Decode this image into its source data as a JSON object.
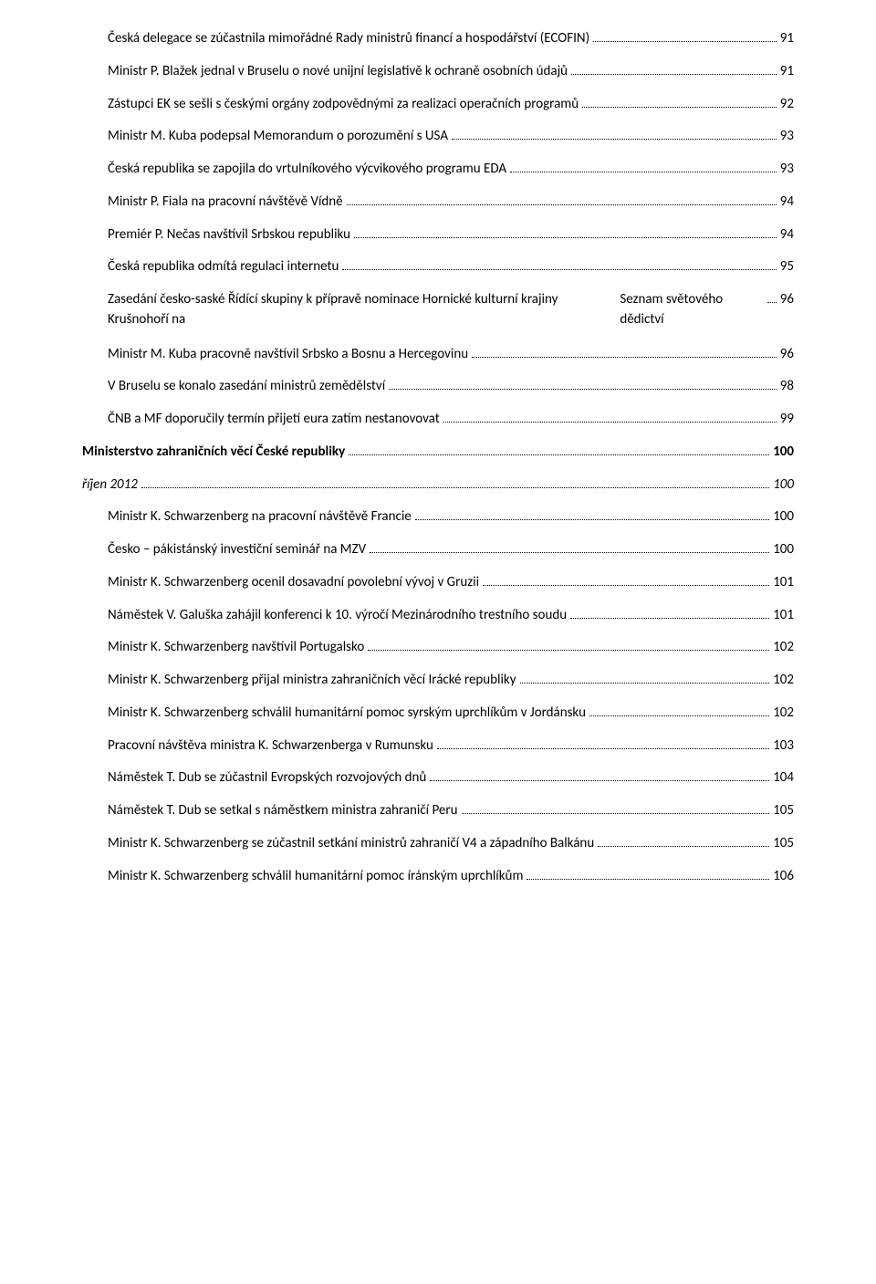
{
  "toc": {
    "entries": [
      {
        "label": "Česká delegace se zúčastnila mimořádné Rady ministrů financí a hospodářství (ECOFIN)",
        "page": "91",
        "level": 2
      },
      {
        "label": "Ministr P. Blažek jednal v Bruselu o nové unijní legislativě k ochraně osobních údajů",
        "page": "91",
        "level": 2
      },
      {
        "label": "Zástupci EK se sešli s českými orgány zodpovědnými za realizaci operačních programů",
        "page": "92",
        "level": 2
      },
      {
        "label": "Ministr M. Kuba podepsal Memorandum o porozumění s USA",
        "page": "93",
        "level": 2
      },
      {
        "label": "Česká republika se zapojila do vrtulníkového výcvikového programu EDA",
        "page": "93",
        "level": 2
      },
      {
        "label": "Ministr P. Fiala na pracovní návštěvě Vídně",
        "page": "94",
        "level": 2
      },
      {
        "label": "Premiér P. Nečas navštívil Srbskou republiku",
        "page": "94",
        "level": 2
      },
      {
        "label": "Česká republika odmítá regulaci internetu",
        "page": "95",
        "level": 2
      },
      {
        "label_line1": "Zasedání česko-saské Řídící skupiny k přípravě nominace Hornické kulturní krajiny Krušnohoří na",
        "label_line2": "Seznam světového dědictví",
        "page": "96",
        "level": 2,
        "multiline": true
      },
      {
        "label": "Ministr M. Kuba pracovně navštívil Srbsko a Bosnu a Hercegovinu",
        "page": "96",
        "level": 2
      },
      {
        "label": "V Bruselu se konalo zasedání ministrů zemědělství",
        "page": "98",
        "level": 2
      },
      {
        "label": "ČNB a MF doporučily termín přijetí eura zatím nestanovovat",
        "page": "99",
        "level": 2
      },
      {
        "label": "Ministerstvo zahraničních věcí České republiky",
        "page": "100",
        "level": 0,
        "bold": true
      },
      {
        "label": "říjen 2012",
        "page": "100",
        "level": 1,
        "italic": true
      },
      {
        "label": "Ministr K. Schwarzenberg na pracovní návštěvě Francie",
        "page": "100",
        "level": 2
      },
      {
        "label": "Česko – pákistánský investiční seminář na MZV",
        "page": "100",
        "level": 2
      },
      {
        "label": "Ministr K. Schwarzenberg ocenil dosavadní povolební vývoj v Gruzii",
        "page": "101",
        "level": 2
      },
      {
        "label": "Náměstek V. Galuška zahájil konferenci k 10. výročí Mezinárodního trestního soudu",
        "page": "101",
        "level": 2
      },
      {
        "label": "Ministr K. Schwarzenberg navštívil Portugalsko",
        "page": "102",
        "level": 2
      },
      {
        "label": "Ministr K. Schwarzenberg přijal ministra zahraničních věcí Irácké republiky",
        "page": "102",
        "level": 2
      },
      {
        "label": "Ministr K. Schwarzenberg schválil humanitární pomoc syrským uprchlíkům v Jordánsku",
        "page": "102",
        "level": 2
      },
      {
        "label": "Pracovní návštěva ministra K. Schwarzenberga v Rumunsku",
        "page": "103",
        "level": 2
      },
      {
        "label": "Náměstek T. Dub se zúčastnil Evropských rozvojových dnů",
        "page": "104",
        "level": 2
      },
      {
        "label": "Náměstek T. Dub se setkal s náměstkem ministra zahraničí Peru",
        "page": "105",
        "level": 2
      },
      {
        "label": "Ministr K. Schwarzenberg se zúčastnil setkání ministrů zahraničí V4 a západního Balkánu",
        "page": "105",
        "level": 2
      },
      {
        "label": "Ministr K. Schwarzenberg schválil humanitární pomoc íránským uprchlíkům",
        "page": "106",
        "level": 2
      }
    ]
  }
}
